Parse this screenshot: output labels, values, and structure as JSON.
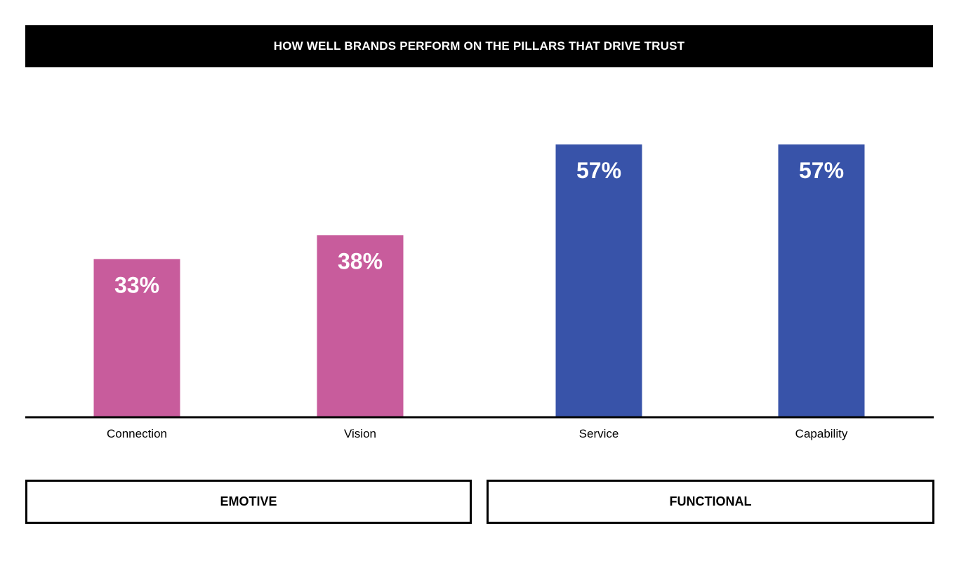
{
  "chart_data": {
    "type": "bar",
    "title": "HOW WELL BRANDS PERFORM ON THE PILLARS THAT DRIVE TRUST",
    "categories": [
      "Connection",
      "Vision",
      "Service",
      "Capability"
    ],
    "values": [
      33,
      38,
      57,
      57
    ],
    "value_labels": [
      "33%",
      "38%",
      "57%",
      "57%"
    ],
    "unit": "%",
    "ylim": [
      0,
      57
    ],
    "grid": false,
    "legend": "none",
    "groups": [
      {
        "label": "EMOTIVE",
        "categories": [
          "Connection",
          "Vision"
        ],
        "color": "#c85c9c"
      },
      {
        "label": "FUNCTIONAL",
        "categories": [
          "Service",
          "Capability"
        ],
        "color": "#3853a9"
      }
    ]
  }
}
